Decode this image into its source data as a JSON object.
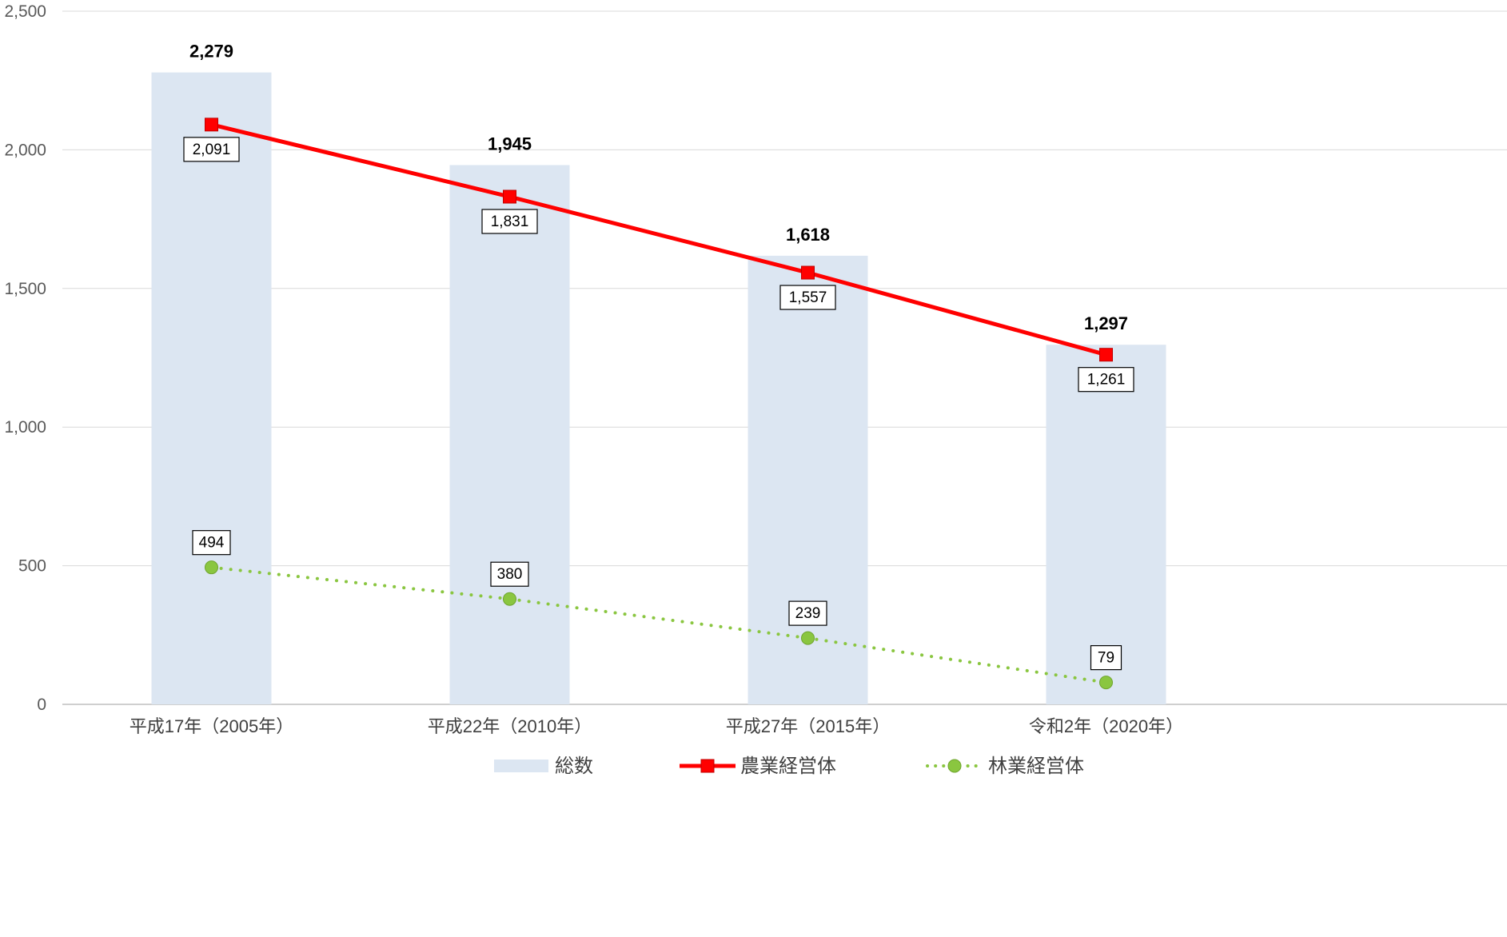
{
  "chart_data": {
    "type": "bar",
    "categories": [
      "平成17年（2005年）",
      "平成22年（2010年）",
      "平成27年（2015年）",
      "令和2年（2020年）"
    ],
    "series": [
      {
        "name": "総数",
        "type": "bar",
        "values": [
          2279,
          1945,
          1618,
          1297
        ],
        "color": "#dce6f2"
      },
      {
        "name": "農業経営体",
        "type": "line",
        "values": [
          2091,
          1831,
          1557,
          1261
        ],
        "color": "#ff0000",
        "marker": "square"
      },
      {
        "name": "林業経営体",
        "type": "line",
        "values": [
          494,
          380,
          239,
          79
        ],
        "color": "#8ac640",
        "marker": "circle",
        "line_style": "dotted"
      }
    ],
    "ylim": [
      0,
      2500
    ],
    "yticks": [
      0,
      500,
      1000,
      1500,
      2000,
      2500
    ],
    "ytick_labels": [
      "0",
      "500",
      "1,000",
      "1,500",
      "2,000",
      "2,500"
    ],
    "grid": true,
    "legend_position": "bottom"
  }
}
